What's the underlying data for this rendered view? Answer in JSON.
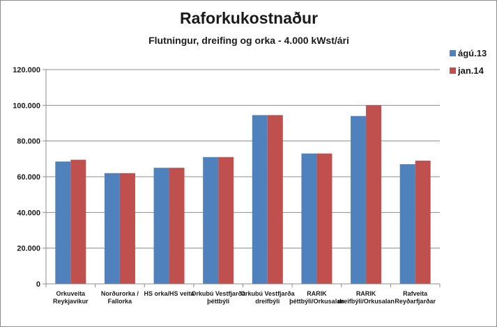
{
  "chart_data": {
    "type": "bar",
    "title": "Raforkukostnaður",
    "subtitle": "Flutningur, dreifing og orka - 4.000 kWst/ári",
    "categories": [
      [
        "Orkuveita",
        "Reykjavíkur"
      ],
      [
        "Norðurorka /",
        "Fallorka"
      ],
      [
        "HS orka/HS veita"
      ],
      [
        "Orkubú Vestfjarða",
        "þéttbýli"
      ],
      [
        "Orkubú Vestfjarða",
        "dreifbýli"
      ],
      [
        "RARIK",
        "þéttbýli/Orkusalan"
      ],
      [
        "RARIK",
        "dreifbýli/Orkusalan"
      ],
      [
        "Rafveita",
        "Reyðarfjarðar"
      ]
    ],
    "series": [
      {
        "name": "ágú.13",
        "color": "#4f81bd",
        "values": [
          68500,
          62000,
          65000,
          71000,
          94500,
          73000,
          94000,
          67000
        ]
      },
      {
        "name": "jan.14",
        "color": "#c0504d",
        "values": [
          69500,
          62000,
          65000,
          71000,
          94500,
          73000,
          100000,
          69000
        ]
      }
    ],
    "ylim": [
      0,
      120000
    ],
    "yticks": [
      {
        "value": 0,
        "label": "0"
      },
      {
        "value": 20000,
        "label": "20.000"
      },
      {
        "value": 40000,
        "label": "40.000"
      },
      {
        "value": 60000,
        "label": "60.000"
      },
      {
        "value": 80000,
        "label": "80.000"
      },
      {
        "value": 100000,
        "label": "100.000"
      },
      {
        "value": 120000,
        "label": "120.000"
      }
    ],
    "grid": true,
    "legend_position": "top-right",
    "colors": {
      "grid": "#8c8c8c",
      "axis": "#8c8c8c"
    }
  }
}
